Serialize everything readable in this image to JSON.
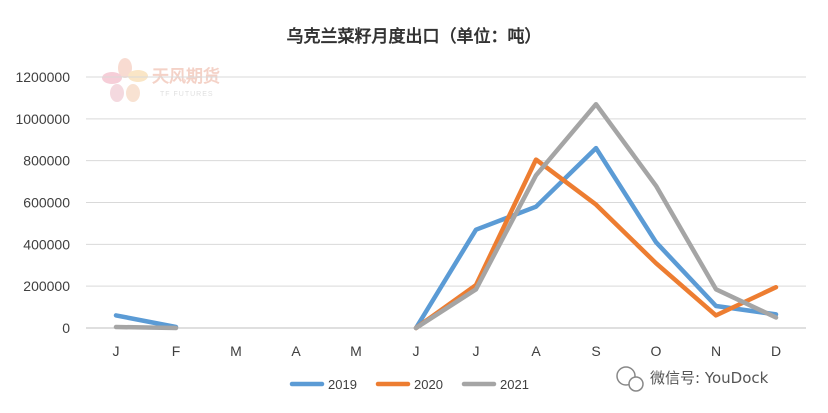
{
  "chart_data": {
    "type": "line",
    "title": "乌克兰菜籽月度出口（单位：吨）",
    "categories": [
      "J",
      "F",
      "M",
      "A",
      "M",
      "J",
      "J",
      "A",
      "S",
      "O",
      "N",
      "D"
    ],
    "y_ticks": [
      "0",
      "200000",
      "400000",
      "600000",
      "800000",
      "1000000",
      "1200000"
    ],
    "ylim": [
      0,
      1200000
    ],
    "grid": true,
    "legend_position": "bottom",
    "series": [
      {
        "name": "2019",
        "color": "#5b9bd5",
        "values": [
          60000,
          5000,
          null,
          null,
          null,
          0,
          470000,
          580000,
          860000,
          410000,
          105000,
          65000
        ]
      },
      {
        "name": "2020",
        "color": "#ed7d31",
        "values": [
          null,
          null,
          null,
          null,
          null,
          0,
          205000,
          805000,
          590000,
          310000,
          60000,
          195000
        ]
      },
      {
        "name": "2021",
        "color": "#a5a5a5",
        "values": [
          5000,
          0,
          null,
          null,
          null,
          0,
          185000,
          730000,
          1070000,
          680000,
          185000,
          50000
        ]
      }
    ]
  },
  "watermark": {
    "brand": "天风期货",
    "sub": "TF FUTURES"
  },
  "social": {
    "label": "微信号: YouDock"
  }
}
